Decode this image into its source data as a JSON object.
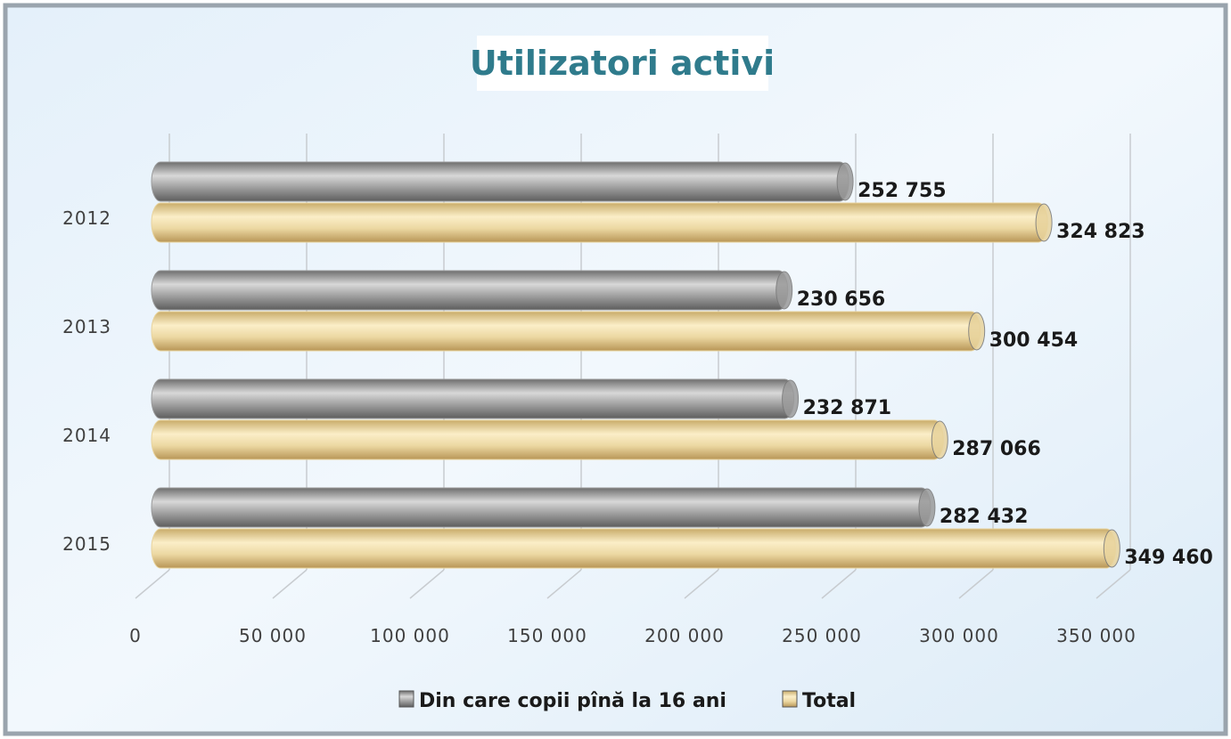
{
  "chart_data": {
    "type": "bar",
    "orientation": "horizontal",
    "title": "Utilizatori activi",
    "categories": [
      "2012",
      "2013",
      "2014",
      "2015"
    ],
    "series": [
      {
        "name": "Din care copii pînă la 16 ani",
        "color": "#9a9a9a",
        "values": [
          252755,
          230656,
          232871,
          282432
        ],
        "value_labels": [
          "252 755",
          "230 656",
          "232 871",
          "282 432"
        ]
      },
      {
        "name": "Total",
        "color": "#e8d39c",
        "values": [
          324823,
          300454,
          287066,
          349460
        ],
        "value_labels": [
          "324 823",
          "300 454",
          "287 066",
          "349 460"
        ]
      }
    ],
    "xlim": [
      0,
      350000
    ],
    "xticks": [
      0,
      {
        "value": 50000,
        "label": "50 000"
      },
      {
        "value": 100000,
        "label": "100 000"
      },
      {
        "value": 150000,
        "label": "150 000"
      },
      {
        "value": 200000,
        "label": "200 000"
      },
      {
        "value": 250000,
        "label": "250 000"
      },
      {
        "value": 300000,
        "label": "300 000"
      },
      {
        "value": 350000,
        "label": "350 000"
      }
    ],
    "grid": true,
    "legend": "bottom"
  }
}
